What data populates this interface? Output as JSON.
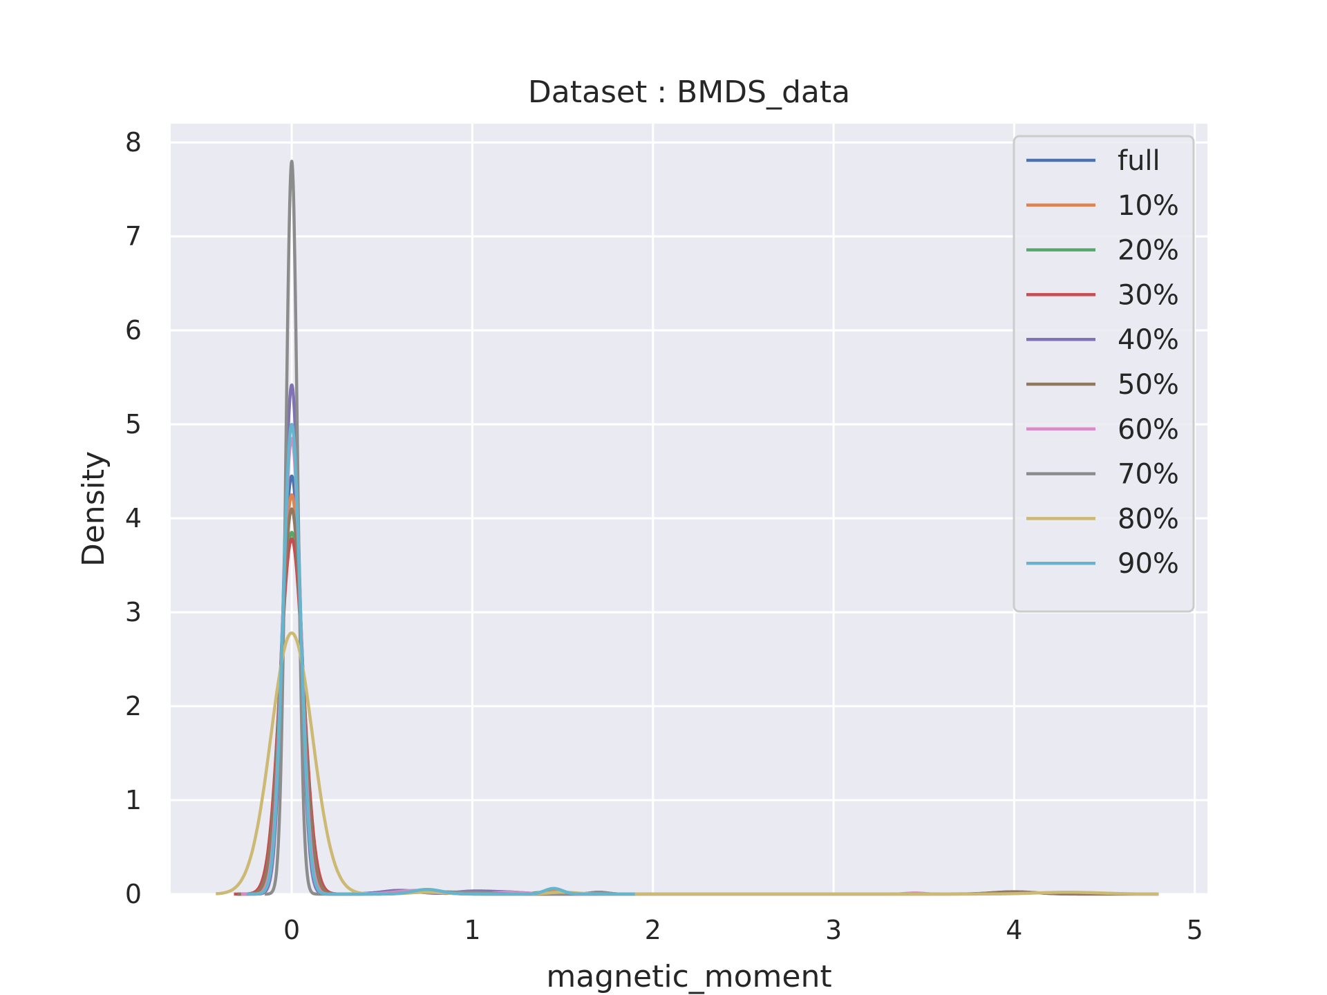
{
  "chart_data": {
    "type": "line",
    "title": "Dataset : BMDS_data",
    "xlabel": "magnetic_moment",
    "ylabel": "Density",
    "xlim": [
      -0.67,
      5.07
    ],
    "ylim": [
      0,
      8.2
    ],
    "xticks": [
      0,
      1,
      2,
      3,
      4,
      5
    ],
    "yticks": [
      0,
      1,
      2,
      3,
      4,
      5,
      6,
      7,
      8
    ],
    "xtick_labels": [
      "0",
      "1",
      "2",
      "3",
      "4",
      "5"
    ],
    "ytick_labels": [
      "0",
      "1",
      "2",
      "3",
      "4",
      "5",
      "6",
      "7",
      "8"
    ],
    "grid": true,
    "legend_position": "top-right",
    "background": "#eaeaf2",
    "series": [
      {
        "name": "full",
        "color": "#4c72b0",
        "peak": 4.45,
        "width": 0.055,
        "x_start": -0.3,
        "x_end": 1.9,
        "bumps": [
          [
            0.6,
            0.03,
            0.12
          ],
          [
            1.1,
            0.02,
            0.15
          ],
          [
            1.45,
            0.03,
            0.05
          ]
        ]
      },
      {
        "name": "10%",
        "color": "#dd8452",
        "peak": 4.25,
        "width": 0.057,
        "x_start": -0.3,
        "x_end": 1.9,
        "bumps": [
          [
            0.7,
            0.03,
            0.12
          ],
          [
            1.45,
            0.03,
            0.05
          ]
        ]
      },
      {
        "name": "20%",
        "color": "#55a868",
        "peak": 3.85,
        "width": 0.063,
        "x_start": -0.3,
        "x_end": 1.9,
        "bumps": [
          [
            0.7,
            0.03,
            0.12
          ],
          [
            1.4,
            0.02,
            0.06
          ]
        ]
      },
      {
        "name": "30%",
        "color": "#c44e52",
        "peak": 3.78,
        "width": 0.064,
        "x_start": -0.32,
        "x_end": 1.9,
        "bumps": [
          [
            0.65,
            0.03,
            0.12
          ],
          [
            1.05,
            0.02,
            0.1
          ]
        ]
      },
      {
        "name": "40%",
        "color": "#8172b3",
        "peak": 5.42,
        "width": 0.045,
        "x_start": -0.25,
        "x_end": 1.9,
        "bumps": [
          [
            0.6,
            0.04,
            0.1
          ],
          [
            1.0,
            0.03,
            0.1
          ],
          [
            1.2,
            0.02,
            0.1
          ]
        ]
      },
      {
        "name": "50%",
        "color": "#937860",
        "peak": 4.1,
        "width": 0.059,
        "x_start": -0.3,
        "x_end": 4.8,
        "bumps": [
          [
            0.75,
            0.03,
            0.12
          ],
          [
            1.7,
            0.02,
            0.05
          ],
          [
            4.0,
            0.025,
            0.12
          ]
        ]
      },
      {
        "name": "60%",
        "color": "#da8bc3",
        "peak": 4.85,
        "width": 0.05,
        "x_start": -0.28,
        "x_end": 3.6,
        "bumps": [
          [
            0.7,
            0.04,
            0.12
          ],
          [
            1.2,
            0.02,
            0.1
          ],
          [
            3.45,
            0.012,
            0.05
          ]
        ]
      },
      {
        "name": "70%",
        "color": "#8c8c8c",
        "peak": 7.8,
        "width": 0.032,
        "x_start": -0.15,
        "x_end": 1.9,
        "bumps": [
          [
            0.75,
            0.03,
            0.1
          ],
          [
            1.0,
            0.02,
            0.1
          ],
          [
            1.7,
            0.02,
            0.05
          ]
        ]
      },
      {
        "name": "80%",
        "color": "#ccb974",
        "peak": 2.78,
        "width": 0.115,
        "x_start": -0.42,
        "x_end": 4.8,
        "bumps": [
          [
            0.75,
            0.02,
            0.1
          ],
          [
            1.5,
            0.02,
            0.08
          ],
          [
            4.3,
            0.02,
            0.18
          ]
        ]
      },
      {
        "name": "90%",
        "color": "#64b5cd",
        "peak": 5.0,
        "width": 0.048,
        "x_start": -0.25,
        "x_end": 1.9,
        "bumps": [
          [
            0.75,
            0.05,
            0.08
          ],
          [
            1.45,
            0.06,
            0.05
          ]
        ]
      }
    ]
  }
}
